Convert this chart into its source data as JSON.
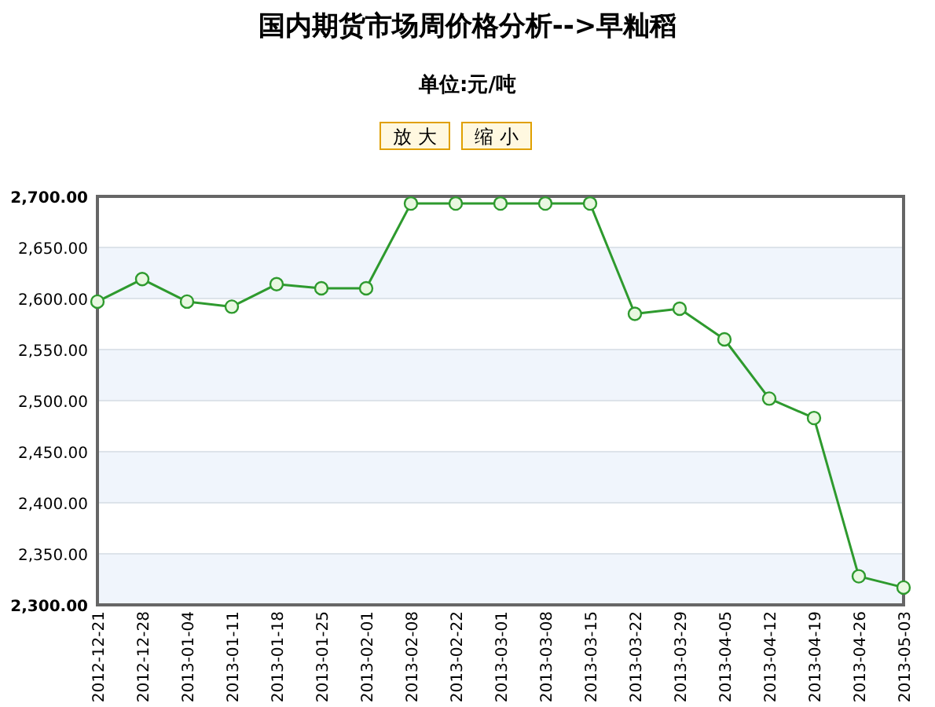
{
  "chart_data": {
    "type": "line",
    "title": "国内期货市场周价格分析-->早籼稻",
    "subtitle": "单位:元/吨",
    "annotations": [
      "放 大",
      "缩 小"
    ],
    "categories": [
      "2012-12-21",
      "2012-12-28",
      "2013-01-04",
      "2013-01-11",
      "2013-01-18",
      "2013-01-25",
      "2013-02-01",
      "2013-02-08",
      "2013-02-22",
      "2013-03-01",
      "2013-03-08",
      "2013-03-15",
      "2013-03-22",
      "2013-03-29",
      "2013-04-05",
      "2013-04-12",
      "2013-04-19",
      "2013-04-26",
      "2013-05-03"
    ],
    "series": [
      {
        "color": "#2e9a2e",
        "values": [
          2597,
          2619,
          2597,
          2592,
          2614,
          2610,
          2610,
          2693,
          2693,
          2693,
          2693,
          2693,
          2585,
          2590,
          2560,
          2502,
          2483,
          2328,
          2317
        ]
      }
    ],
    "ylim": [
      2300,
      2700
    ],
    "yticks": [
      {
        "value": 2300,
        "label": "2,300.00"
      },
      {
        "value": 2350,
        "label": "2,350.00"
      },
      {
        "value": 2400,
        "label": "2,400.00"
      },
      {
        "value": 2450,
        "label": "2,450.00"
      },
      {
        "value": 2500,
        "label": "2,500.00"
      },
      {
        "value": 2550,
        "label": "2,550.00"
      },
      {
        "value": 2600,
        "label": "2,600.00"
      },
      {
        "value": 2650,
        "label": "2,650.00"
      },
      {
        "value": 2700,
        "label": "2,700.00"
      }
    ],
    "grid": "y",
    "marker": "circle",
    "line_style": "solid"
  }
}
